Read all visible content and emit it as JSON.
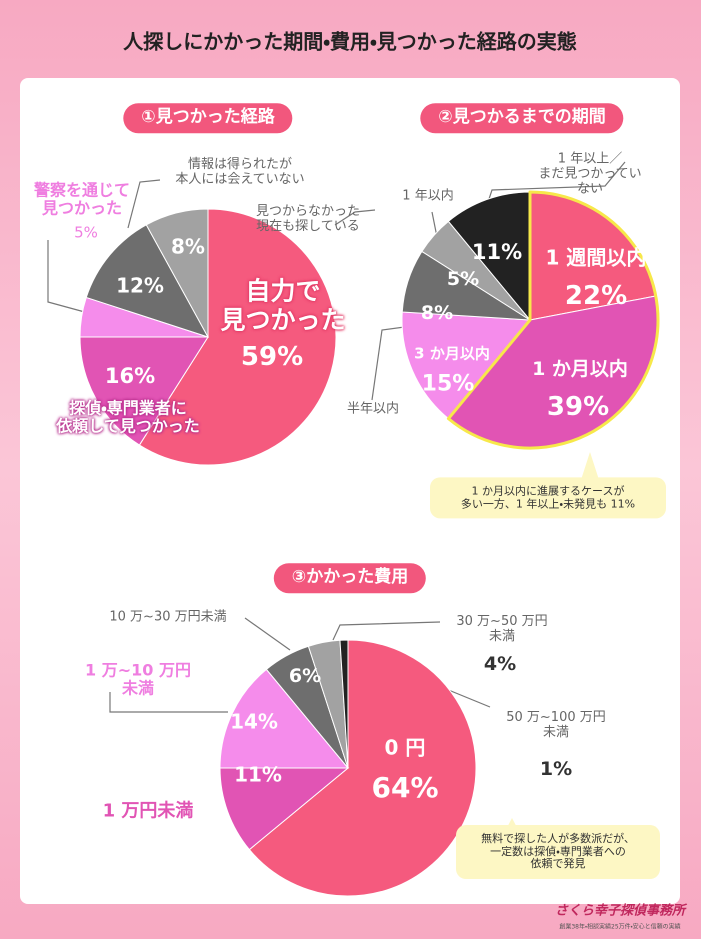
{
  "title": "人探しにかかった期間・費用・見つかった経路の実態",
  "chart_data": [
    {
      "type": "pie",
      "title": "①見つかった経路",
      "categories": [
        "自力で\n見つかった",
        "探偵・専門業者に\n依頼して見つかった",
        "警察を通じて\n見つかった",
        "情報は得られたが\n本人には会えていない",
        "見つからなかった\n現在も探している"
      ],
      "values": [
        59,
        16,
        5,
        12,
        8
      ],
      "value_labels": [
        "59%",
        "16%",
        "5%",
        "12%",
        "8%"
      ],
      "colors": [
        "#f55a7e",
        "#e154b4",
        "#f58ceb",
        "#6e6e6e",
        "#a2a2a2"
      ]
    },
    {
      "type": "pie",
      "title": "②見つかるまでの期間",
      "categories": [
        "1 週間以内",
        "1 か月以内",
        "3 か月以内",
        "半年以内",
        "1 年以内",
        "1 年以上／\nまだ見つかっていない"
      ],
      "values": [
        22,
        39,
        15,
        8,
        5,
        11
      ],
      "value_labels": [
        "22%",
        "39%",
        "15%",
        "8%",
        "5%",
        "11%"
      ],
      "colors": [
        "#f55a7e",
        "#e154b4",
        "#f58ceb",
        "#6e6e6e",
        "#a2a2a2",
        "#222222"
      ],
      "highlight_color": "#f7e84a",
      "annotation": "1 か月以内に進展するケースが\n多い一方、1 年以上・未発見も 11%"
    },
    {
      "type": "pie",
      "title": "③かかった費用",
      "categories": [
        "0 円",
        "1 万円未満",
        "1 万~10 万円\n未満",
        "10 万~30 万円未満",
        "30 万~50 万円\n未満",
        "50 万~100 万円\n未満"
      ],
      "values": [
        64,
        11,
        14,
        6,
        4,
        1
      ],
      "value_labels": [
        "64%",
        "11%",
        "14%",
        "6%",
        "4%",
        "1%"
      ],
      "colors": [
        "#f55a7e",
        "#e154b4",
        "#f58ceb",
        "#6e6e6e",
        "#a2a2a2",
        "#222222"
      ],
      "annotation": "無料で探した人が多数派だが、\n一定数は探偵・専門業者への\n依頼で発見"
    }
  ],
  "logo": {
    "name": "さくら幸子探偵事務所",
    "tagline": "創業38年・相談実績25万件・安心と信頼の実績"
  }
}
